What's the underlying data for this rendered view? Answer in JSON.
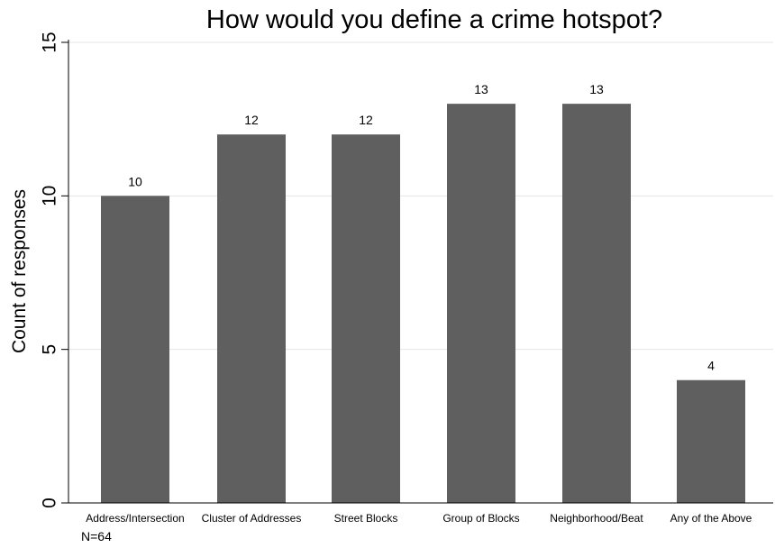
{
  "chart_data": {
    "type": "bar",
    "title": "How would you define a crime hotspot?",
    "xlabel": "",
    "ylabel": "Count of responses",
    "categories": [
      "Address/Intersection",
      "Cluster of Addresses",
      "Street Blocks",
      "Group of Blocks",
      "Neighborhood/Beat",
      "Any of the Above"
    ],
    "values": [
      10,
      12,
      12,
      13,
      13,
      4
    ],
    "data_labels": [
      "10",
      "12",
      "12",
      "13",
      "13",
      "4"
    ],
    "ylim": [
      0,
      15
    ],
    "yticks": [
      0,
      5,
      10,
      15
    ],
    "ytick_labels": [
      "0",
      "5",
      "10",
      "15"
    ],
    "grid": true,
    "note": "N=64"
  },
  "colors": {
    "bar": "#5f5f5f",
    "grid": "#e5e5e5",
    "axis": "#000000",
    "background": "#ffffff"
  }
}
